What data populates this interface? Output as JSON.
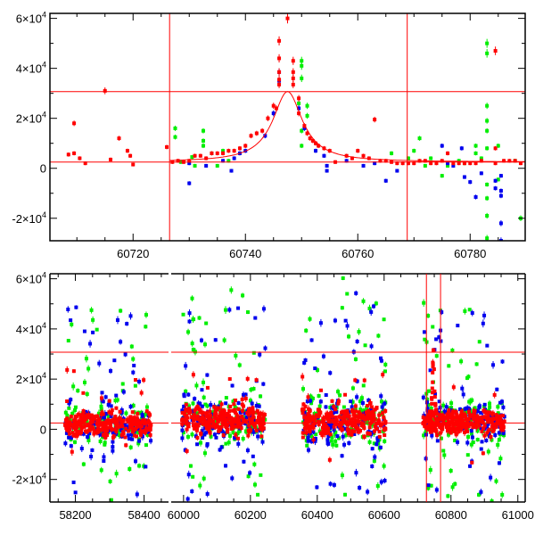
{
  "chart_data": [
    {
      "type": "scatter",
      "title": "",
      "xlabel": "",
      "ylabel": "",
      "xlim": [
        60705.2,
        60789.8
      ],
      "ylim": [
        -29000,
        62000
      ],
      "xticks": [
        60720,
        60740,
        60760,
        60780
      ],
      "yticks": [
        {
          "value": -20000,
          "mant": "-2",
          "exp": "4"
        },
        {
          "value": 0,
          "mant": "0",
          "exp": ""
        },
        {
          "value": 20000,
          "mant": "2",
          "exp": "4"
        },
        {
          "value": 40000,
          "mant": "4",
          "exp": "4"
        },
        {
          "value": 60000,
          "mant": "6",
          "exp": "4"
        }
      ],
      "hlines": [
        30700,
        2500
      ],
      "vlines": [
        60726.5,
        60768.8
      ],
      "fit": {
        "peak_x": 60747.5,
        "peak_y": 30700,
        "baseline": 2500,
        "width_days": 3.2
      },
      "y_unit": 10000,
      "series": [
        {
          "name": "green",
          "color": "#00ee00",
          "points": [
            [
              60727.5,
              1.6
            ],
            [
              60727.5,
              1.25
            ],
            [
              60728.5,
              0.25
            ],
            [
              60730.5,
              0.45
            ],
            [
              60731,
              0.1
            ],
            [
              60732.5,
              1.5
            ],
            [
              60732.5,
              1.1
            ],
            [
              60732.5,
              0.9
            ],
            [
              60734,
              0.6
            ],
            [
              60735,
              0.1
            ],
            [
              60736,
              0.7
            ],
            [
              60737,
              0.3
            ],
            [
              60749.5,
              2.6
            ],
            [
              60750,
              4.3
            ],
            [
              60750,
              4.1
            ],
            [
              60750,
              3.6
            ],
            [
              60750,
              1.5
            ],
            [
              60750,
              0.9
            ],
            [
              60751,
              2.5
            ],
            [
              60751,
              2.1
            ],
            [
              60766,
              0.6
            ],
            [
              60769,
              0.4
            ],
            [
              60770,
              0.7
            ],
            [
              60771,
              1.2
            ],
            [
              60772,
              0.1
            ],
            [
              60773,
              0.4
            ],
            [
              60775,
              -0.3
            ],
            [
              60776,
              0.1
            ],
            [
              60778,
              0.3
            ],
            [
              60779,
              0.2
            ],
            [
              60781,
              0.9
            ],
            [
              60781,
              0.6
            ],
            [
              60782,
              0.4
            ],
            [
              60783,
              5.0
            ],
            [
              60783,
              4.6
            ],
            [
              60783,
              2.5
            ],
            [
              60783,
              1.9
            ],
            [
              60783,
              1.5
            ],
            [
              60783,
              0.8
            ],
            [
              60783,
              -0.65
            ],
            [
              60783,
              -1.2
            ],
            [
              60783,
              -1.9
            ],
            [
              60783,
              -2.8
            ],
            [
              60785,
              0.9
            ],
            [
              60785,
              -0.45
            ],
            [
              60788,
              0.3
            ],
            [
              60789,
              -2.0
            ]
          ]
        },
        {
          "name": "blue",
          "color": "#0000ee",
          "points": [
            [
              60730,
              -0.6
            ],
            [
              60730,
              0.2
            ],
            [
              60733,
              0.1
            ],
            [
              60736,
              0.3
            ],
            [
              60737.5,
              -0.1
            ],
            [
              60738,
              0.4
            ],
            [
              60739,
              0.6
            ],
            [
              60740,
              0.7
            ],
            [
              60743.5,
              1.3
            ],
            [
              60745,
              2.2
            ],
            [
              60746,
              3.85
            ],
            [
              60746,
              3.5
            ],
            [
              60749.5,
              2.4
            ],
            [
              60750.5,
              1.6
            ],
            [
              60752.5,
              0.7
            ],
            [
              60754,
              0.5
            ],
            [
              60754.5,
              0.1
            ],
            [
              60754.5,
              -0.1
            ],
            [
              60758,
              0.3
            ],
            [
              60761,
              0.1
            ],
            [
              60763,
              0.2
            ],
            [
              60765,
              -0.5
            ],
            [
              60767,
              -0.1
            ],
            [
              60775,
              0.9
            ],
            [
              60776,
              0.2
            ],
            [
              60777,
              0.1
            ],
            [
              60778.5,
              0.8
            ],
            [
              60779,
              -0.35
            ],
            [
              60780,
              -0.55
            ],
            [
              60781,
              -1.15
            ],
            [
              60782,
              -0.2
            ],
            [
              60784.5,
              -0.5
            ],
            [
              60784.5,
              -0.8
            ],
            [
              60785.5,
              -0.3
            ],
            [
              60785.5,
              -0.9
            ],
            [
              60785.5,
              -1.1
            ],
            [
              60785.5,
              -2.2
            ],
            [
              60785.5,
              -2.9
            ]
          ]
        },
        {
          "name": "red",
          "color": "#ff0000",
          "points": [
            [
              60708.5,
              0.55
            ],
            [
              60709.5,
              1.8
            ],
            [
              60709.5,
              0.6
            ],
            [
              60710.5,
              0.4
            ],
            [
              60711.5,
              0.2
            ],
            [
              60715,
              3.1
            ],
            [
              60716,
              0.35
            ],
            [
              60717.5,
              1.2
            ],
            [
              60719,
              0.7
            ],
            [
              60719.5,
              0.5
            ],
            [
              60720,
              0.15
            ],
            [
              60726,
              0.85
            ],
            [
              60727,
              0.25
            ],
            [
              60728,
              0.3
            ],
            [
              60729,
              0.25
            ],
            [
              60730,
              0.3
            ],
            [
              60731,
              0.5
            ],
            [
              60732,
              0.5
            ],
            [
              60733,
              0.4
            ],
            [
              60734,
              0.6
            ],
            [
              60735,
              0.6
            ],
            [
              60736,
              0.6
            ],
            [
              60737,
              0.7
            ],
            [
              60738,
              0.7
            ],
            [
              60739,
              0.8
            ],
            [
              60740,
              0.9
            ],
            [
              60741,
              1.3
            ],
            [
              60742,
              1.4
            ],
            [
              60743,
              1.5
            ],
            [
              60744,
              2.0
            ],
            [
              60745,
              2.5
            ],
            [
              60745.5,
              2.4
            ],
            [
              60746,
              5.1
            ],
            [
              60746,
              4.4
            ],
            [
              60746,
              3.85
            ],
            [
              60746,
              3.55
            ],
            [
              60746,
              3.35
            ],
            [
              60747.5,
              6.0
            ],
            [
              60748.5,
              4.3
            ],
            [
              60748.5,
              3.85
            ],
            [
              60748.5,
              3.6
            ],
            [
              60748.5,
              3.35
            ],
            [
              60749.5,
              2.8
            ],
            [
              60749.5,
              2.2
            ],
            [
              60750.5,
              1.7
            ],
            [
              60751,
              1.4
            ],
            [
              60751.5,
              1.2
            ],
            [
              60752,
              1.1
            ],
            [
              60752.5,
              1.0
            ],
            [
              60753,
              0.9
            ],
            [
              60754,
              0.8
            ],
            [
              60755,
              0.7
            ],
            [
              60756,
              0.25
            ],
            [
              60758,
              0.5
            ],
            [
              60759,
              0.4
            ],
            [
              60760,
              0.7
            ],
            [
              60761,
              0.5
            ],
            [
              60762,
              0.4
            ],
            [
              60763,
              1.95
            ],
            [
              60764,
              0.3
            ],
            [
              60765,
              0.3
            ],
            [
              60766,
              0.25
            ],
            [
              60767,
              0.2
            ],
            [
              60768,
              0.2
            ],
            [
              60769,
              0.2
            ],
            [
              60770,
              0.2
            ],
            [
              60771,
              0.3
            ],
            [
              60772,
              0.3
            ],
            [
              60773,
              0.2
            ],
            [
              60774,
              0.2
            ],
            [
              60775,
              0.3
            ],
            [
              60776,
              0.6
            ],
            [
              60777,
              0.2
            ],
            [
              60778,
              0.2
            ],
            [
              60779,
              0.2
            ],
            [
              60780,
              0.2
            ],
            [
              60781,
              0.2
            ],
            [
              60782,
              0.3
            ],
            [
              60784.5,
              4.7
            ],
            [
              60784.5,
              0.8
            ],
            [
              60784.5,
              0.2
            ],
            [
              60786,
              0.3
            ],
            [
              60787,
              0.3
            ],
            [
              60788,
              0.3
            ],
            [
              60789,
              0.2
            ]
          ]
        }
      ]
    },
    {
      "type": "scatter",
      "title": "",
      "xlabel": "",
      "ylabel": "",
      "broken_x_axis": [
        [
          58126,
          58471
        ],
        [
          59963,
          61022
        ]
      ],
      "ylim": [
        -29000,
        62000
      ],
      "xticks": [
        58200,
        58400,
        60000,
        60200,
        60400,
        60600,
        60800,
        61000
      ],
      "yticks": [
        {
          "value": -20000,
          "mant": "-2",
          "exp": "4"
        },
        {
          "value": 0,
          "mant": "0",
          "exp": ""
        },
        {
          "value": 20000,
          "mant": "2",
          "exp": "4"
        },
        {
          "value": 40000,
          "mant": "4",
          "exp": "4"
        },
        {
          "value": 60000,
          "mant": "6",
          "exp": "4"
        }
      ],
      "hlines": [
        30700,
        2500
      ],
      "vlines": [
        60726.5,
        60768.8
      ],
      "seasons": [
        {
          "start": 58170,
          "end": 58420,
          "median": 2000,
          "scatter": 3000
        },
        {
          "start": 59995,
          "end": 60245,
          "median": 4000,
          "scatter": 3500
        },
        {
          "start": 60355,
          "end": 60605,
          "median": 3000,
          "scatter": 3500
        },
        {
          "start": 60715,
          "end": 60960,
          "median": 3000,
          "scatter": 3000
        }
      ],
      "series_colors": {
        "green": "#00ee00",
        "blue": "#0000ee",
        "red": "#ff0000"
      }
    }
  ]
}
